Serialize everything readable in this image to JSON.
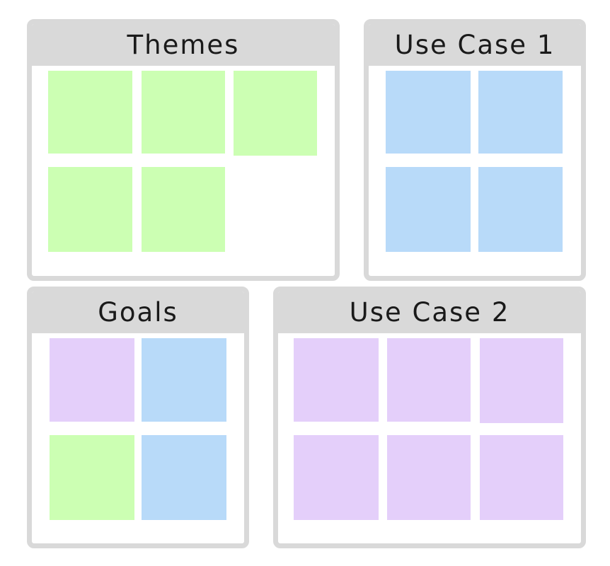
{
  "frames": [
    {
      "id": "themes",
      "title": "Themes",
      "notes": [
        "green",
        "green",
        "green",
        "green",
        "green"
      ]
    },
    {
      "id": "uc1",
      "title": "Use Case 1",
      "notes": [
        "blue",
        "blue",
        "blue",
        "blue"
      ]
    },
    {
      "id": "goals",
      "title": "Goals",
      "notes": [
        "purple",
        "blue",
        "green",
        "blue"
      ]
    },
    {
      "id": "uc2",
      "title": "Use Case 2",
      "notes": [
        "purple",
        "purple",
        "purple",
        "purple",
        "purple",
        "purple"
      ]
    }
  ],
  "colors": {
    "frame_border": "#d9d9d9",
    "green": "#ccffb3",
    "blue": "#b8daf9",
    "purple": "#e4cffa"
  }
}
